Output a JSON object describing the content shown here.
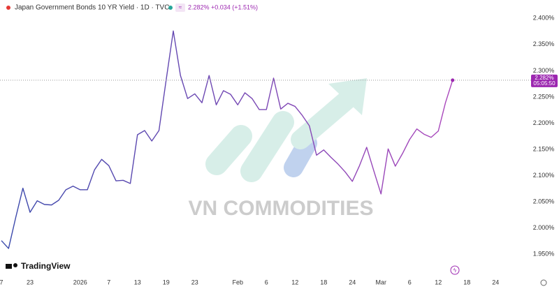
{
  "chart_data": {
    "type": "line",
    "title": "Japan Government Bonds 10 YR Yield · 1D · TVC",
    "last_price": "2.282%",
    "change": "+0.034 (+1.51%)",
    "countdown": "05:05:50",
    "watermark": "VN COMMODITIES",
    "brand": "TradingView",
    "categories": [
      "7",
      null,
      null,
      null,
      "23",
      null,
      null,
      null,
      null,
      null,
      null,
      "2026",
      null,
      null,
      null,
      "7",
      null,
      null,
      null,
      "13",
      null,
      null,
      null,
      "19",
      null,
      null,
      null,
      "23",
      null,
      null,
      null,
      null,
      null,
      "Feb",
      null,
      null,
      null,
      "6",
      null,
      null,
      null,
      "12",
      null,
      null,
      null,
      "18",
      null,
      null,
      null,
      "24",
      null,
      null,
      null,
      "Mar",
      null,
      null,
      null,
      "6",
      null,
      null,
      null,
      "12",
      null,
      null,
      null,
      "18",
      null,
      null,
      null,
      "24"
    ],
    "series": [
      {
        "name": "Japan Government Bonds 10 YR Yield",
        "color": "#9c27b0",
        "gradient": [
          "#3949ab",
          "#ab47bc"
        ],
        "values": [
          1.976,
          1.961,
          2.02,
          2.076,
          2.03,
          2.052,
          2.045,
          2.044,
          2.053,
          2.073,
          2.08,
          2.073,
          2.073,
          2.111,
          2.131,
          2.119,
          2.09,
          2.091,
          2.085,
          2.178,
          2.186,
          2.166,
          2.186,
          2.282,
          2.376,
          2.291,
          2.247,
          2.256,
          2.239,
          2.291,
          2.235,
          2.262,
          2.255,
          2.235,
          2.258,
          2.247,
          2.226,
          2.226,
          2.286,
          2.227,
          2.238,
          2.232,
          2.215,
          2.195,
          2.139,
          2.149,
          2.135,
          2.122,
          2.107,
          2.089,
          2.119,
          2.154,
          2.109,
          2.065,
          2.151,
          2.118,
          2.142,
          2.169,
          2.189,
          2.179,
          2.173,
          2.185,
          2.239,
          2.282,
          null,
          null,
          null,
          null,
          null,
          null
        ]
      }
    ],
    "ylim": [
      1.909,
      2.435
    ],
    "yticks": [
      {
        "value": 1.95,
        "label": "1.950%"
      },
      {
        "value": 2.0,
        "label": "2.000%"
      },
      {
        "value": 2.05,
        "label": "2.050%"
      },
      {
        "value": 2.1,
        "label": "2.100%"
      },
      {
        "value": 2.15,
        "label": "2.150%"
      },
      {
        "value": 2.2,
        "label": "2.200%"
      },
      {
        "value": 2.25,
        "label": "2.250%"
      },
      {
        "value": 2.3,
        "label": "2.300%"
      },
      {
        "value": 2.35,
        "label": "2.350%"
      },
      {
        "value": 2.4,
        "label": "2.400%"
      }
    ],
    "grid": false
  }
}
